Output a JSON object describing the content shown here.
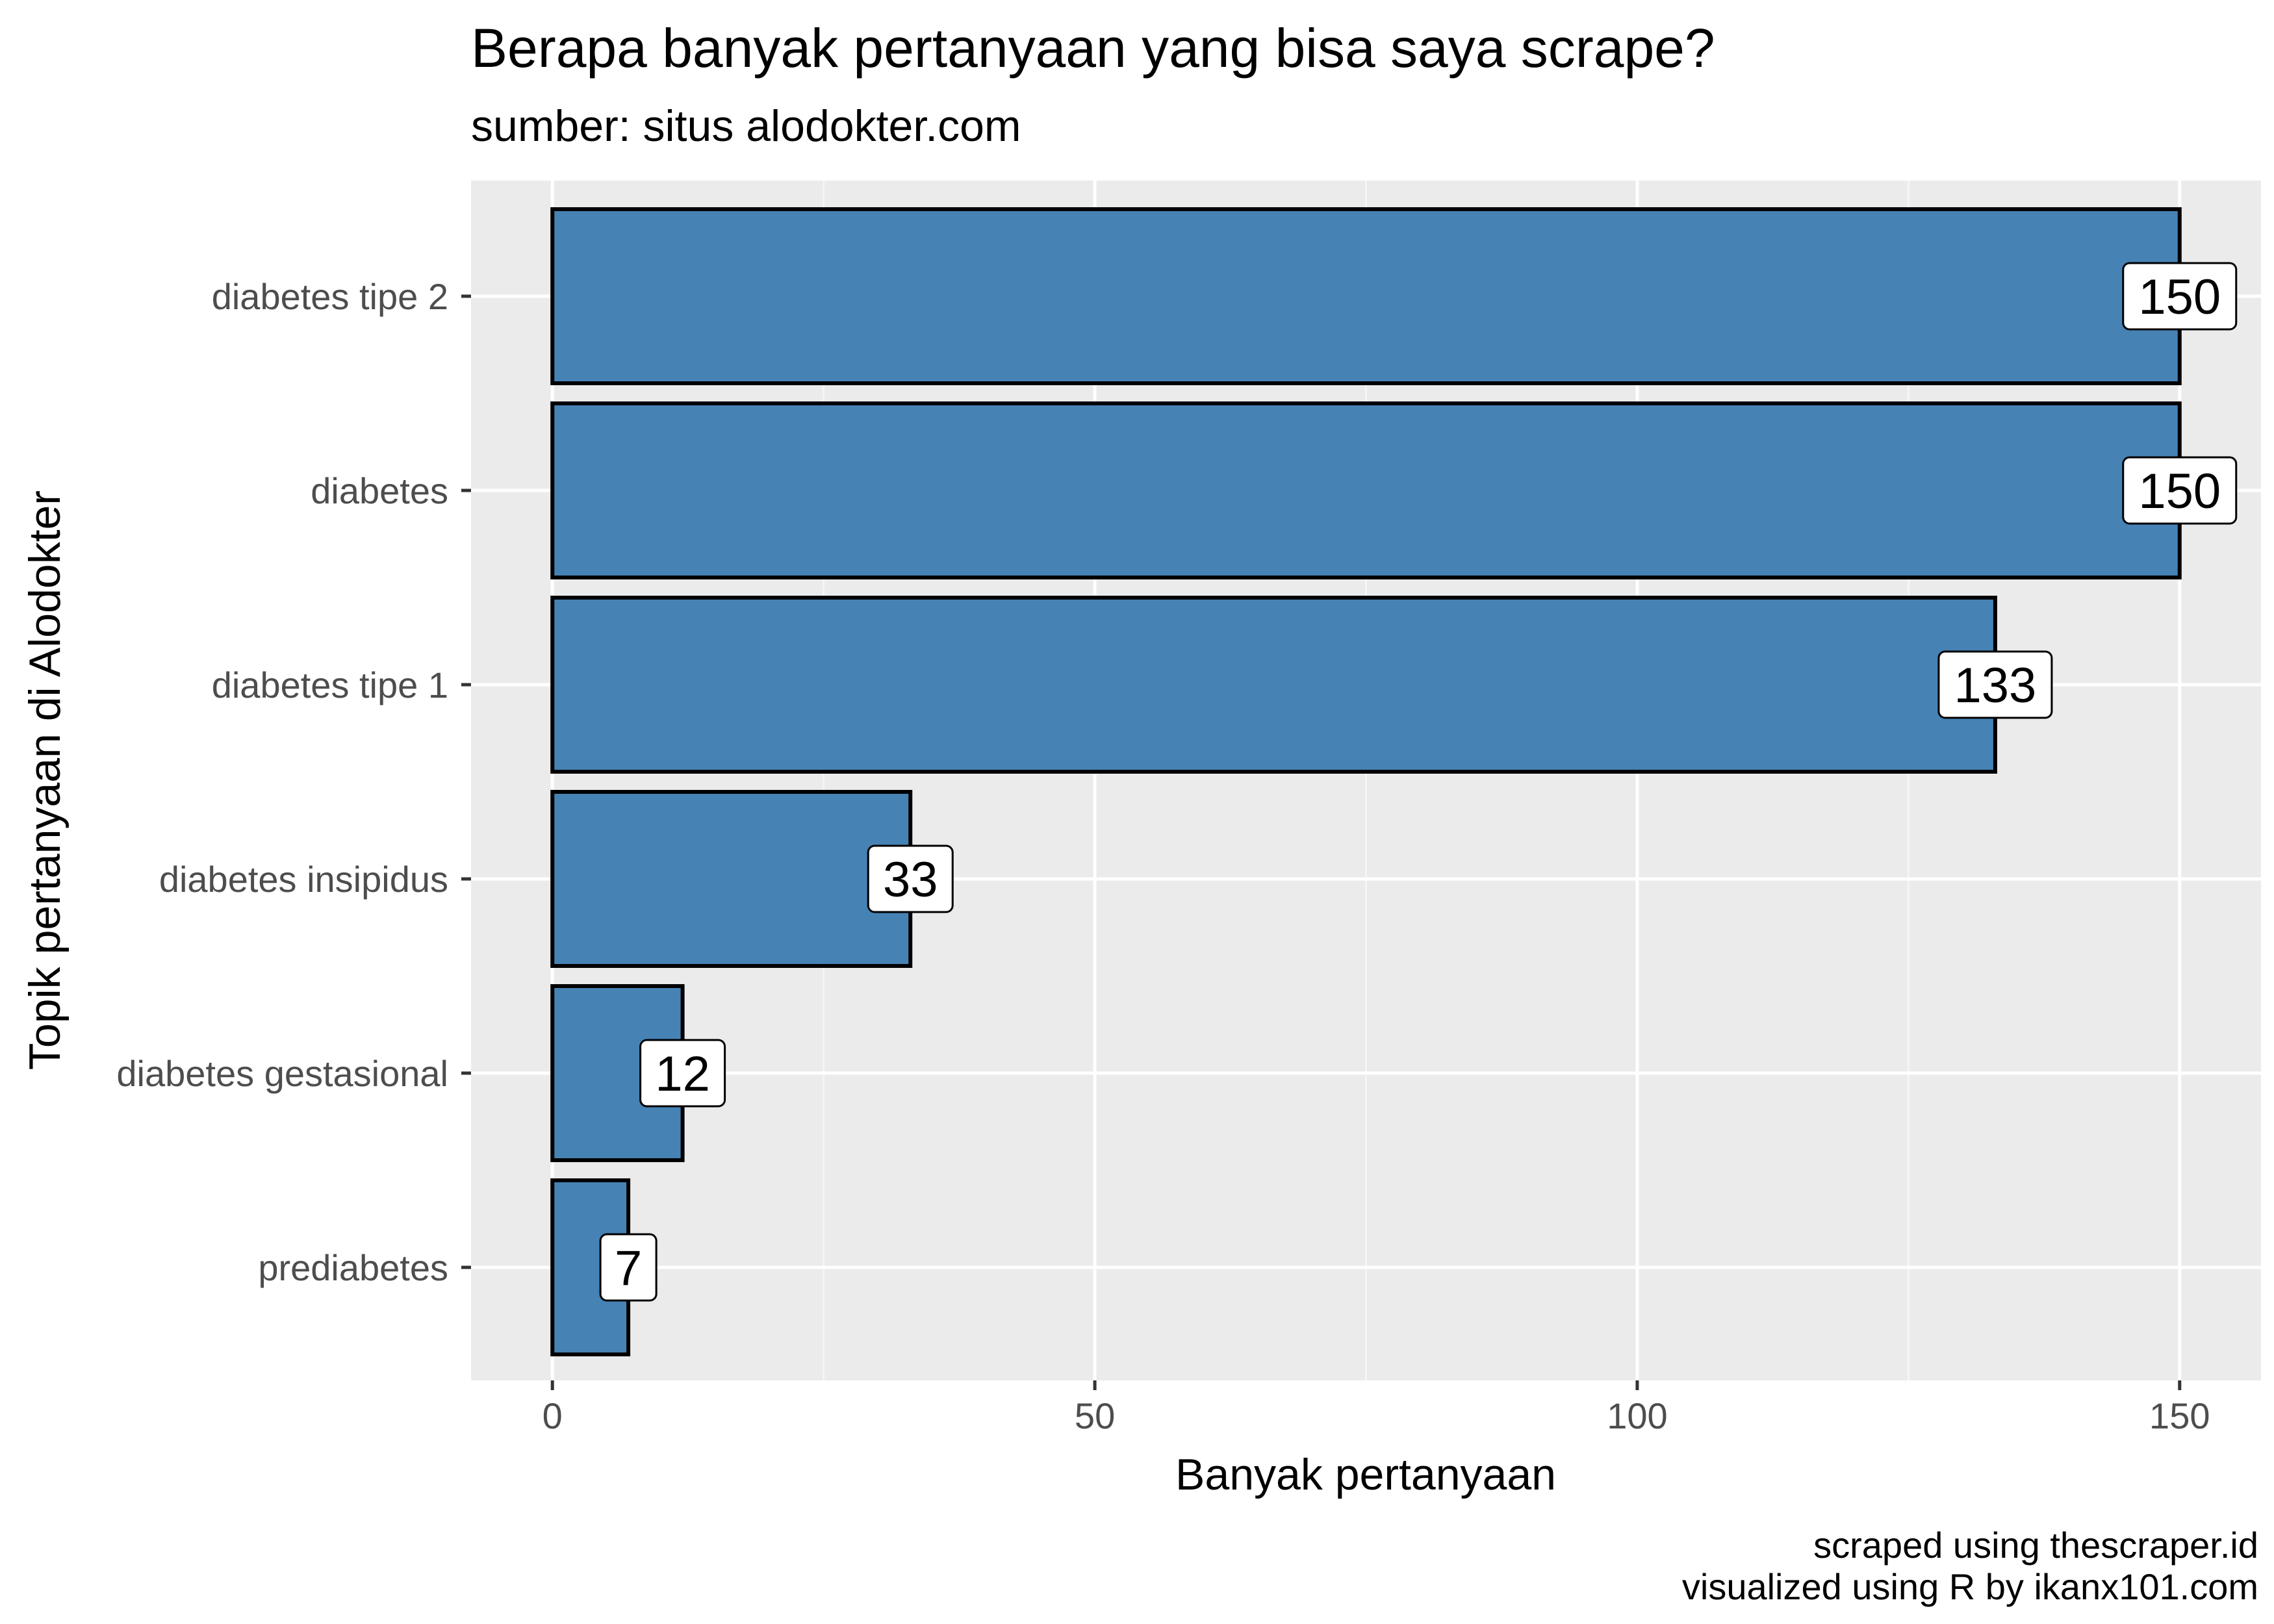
{
  "chart_data": {
    "type": "bar",
    "orientation": "horizontal",
    "title": "Berapa banyak pertanyaan yang bisa saya scrape?",
    "subtitle": "sumber: situs alodokter.com",
    "xlabel": "Banyak pertanyaan",
    "ylabel": "Topik pertanyaan di Alodokter",
    "caption": [
      "scraped using thescraper.id",
      "visualized using R by ikanx101.com"
    ],
    "categories": [
      "diabetes tipe 2",
      "diabetes",
      "diabetes tipe 1",
      "diabetes insipidus",
      "diabetes gestasional",
      "prediabetes"
    ],
    "values": [
      150,
      150,
      133,
      33,
      12,
      7
    ],
    "data_labels": [
      "150",
      "150",
      "133",
      "33",
      "12",
      "7"
    ],
    "xlim": [
      -7.5,
      157.5
    ],
    "x_ticks": [
      0,
      50,
      100,
      150
    ],
    "x_tick_labels": [
      "0",
      "50",
      "100",
      "150"
    ],
    "grid": true,
    "colors": {
      "bar_fill": "#4682b4",
      "bar_outline": "#000000",
      "panel_background": "#ebebeb",
      "grid_major": "#ffffff",
      "grid_minor": "#f5f5f5",
      "tick_text": "#4d4d4d",
      "label_box_fill": "#ffffff"
    }
  }
}
